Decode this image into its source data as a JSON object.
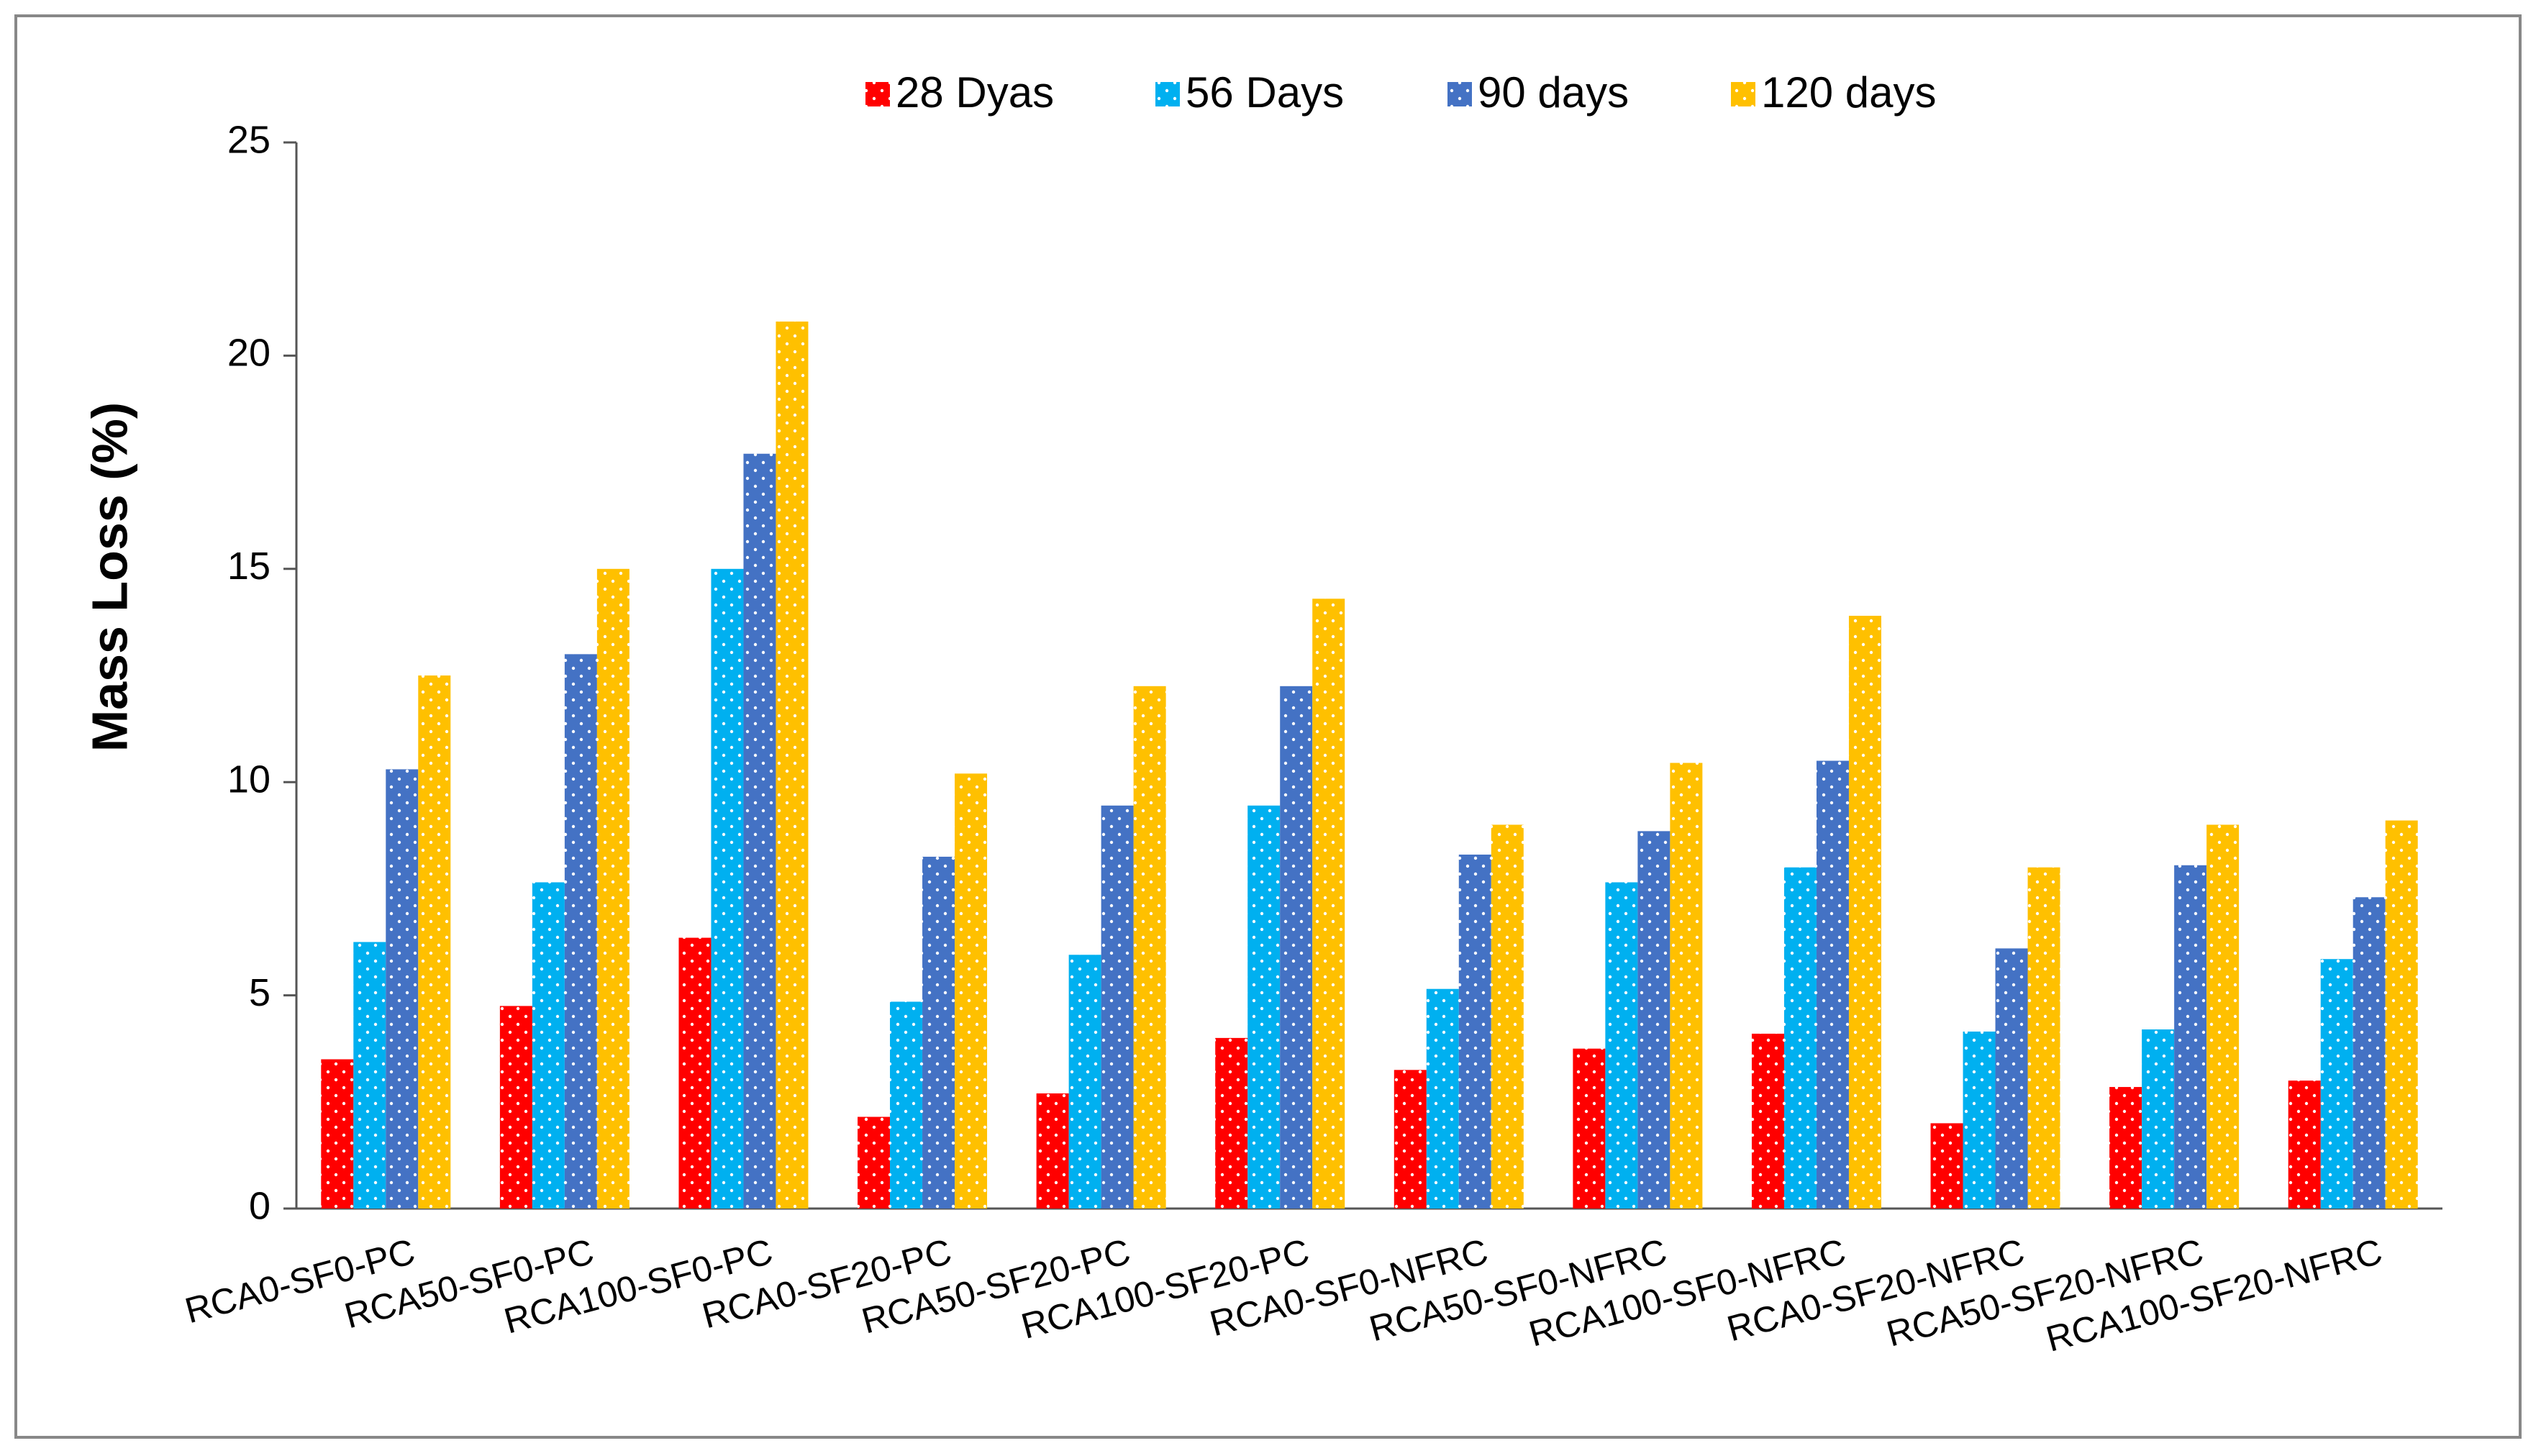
{
  "chart_data": {
    "type": "bar",
    "y_label": "Mass Loss (%)",
    "categories": [
      "RCA0-SF0-PC",
      "RCA50-SF0-PC",
      "RCA100-SF0-PC",
      "RCA0-SF20-PC",
      "RCA50-SF20-PC",
      "RCA100-SF20-PC",
      "RCA0-SF0-NFRC",
      "RCA50-SF0-NFRC",
      "RCA100-SF0-NFRC",
      "RCA0-SF20-NFRC",
      "RCA50-SF20-NFRC",
      "RCA100-SF20-NFRC"
    ],
    "series": [
      {
        "name": "28 Dyas",
        "color": "#ff0000",
        "values": [
          3.5,
          4.75,
          6.35,
          2.15,
          2.7,
          4.0,
          3.25,
          3.75,
          4.1,
          2.0,
          2.85,
          3.0
        ]
      },
      {
        "name": "56 Days",
        "color": "#00b0f0",
        "values": [
          6.25,
          7.65,
          15,
          4.85,
          5.95,
          9.45,
          5.15,
          7.65,
          8.0,
          4.15,
          4.2,
          5.85
        ]
      },
      {
        "name": "90 days",
        "color": "#4472c4",
        "values": [
          10.3,
          13,
          17.7,
          8.25,
          9.45,
          12.25,
          8.3,
          8.85,
          10.5,
          6.1,
          8.05,
          7.3
        ]
      },
      {
        "name": "120 days",
        "color": "#ffc000",
        "values": [
          12.5,
          15,
          20.8,
          10.2,
          12.25,
          14.3,
          9.0,
          10.45,
          13.9,
          8.0,
          9.0,
          9.1
        ]
      }
    ],
    "ylim": [
      0,
      25
    ],
    "yticks": [
      0,
      5,
      10,
      15,
      20,
      25
    ],
    "grid": false
  }
}
